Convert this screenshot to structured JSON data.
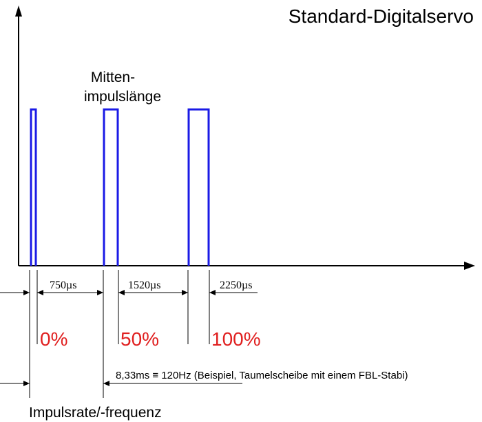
{
  "title": "Standard-Digitalservo",
  "center_label": {
    "line1": "Mitten-",
    "line2": "impulslänge"
  },
  "pulse_widths": [
    {
      "value": "750",
      "unit": "µs"
    },
    {
      "value": "1520",
      "unit": "µs"
    },
    {
      "value": "2250",
      "unit": "µs"
    }
  ],
  "positions": [
    {
      "label": "0%"
    },
    {
      "label": "50%"
    },
    {
      "label": "100%"
    }
  ],
  "period_label": "8,33ms ≡ 120Hz (Beispiel, Taumelscheibe mit einem FBL-Stabi)",
  "rate_label": "Impulsrate/-frequenz",
  "colors": {
    "pulse": "#1a1ae6",
    "percent": "#e02020",
    "lines": "#000000"
  }
}
